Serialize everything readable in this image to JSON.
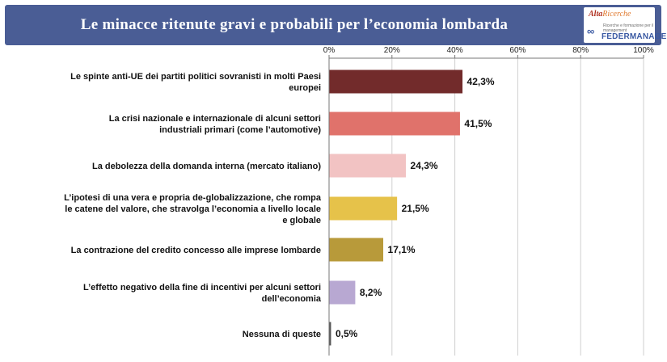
{
  "header": {
    "title": "Le minacce ritenute gravi e probabili per l’economia lombarda",
    "logo_top": [
      "Alta",
      "Ricerche"
    ],
    "logo_bottom": "FEDERMANAGER",
    "logo_small": "Ricerche e formazione per il management"
  },
  "colors": {
    "header_bg": "#4a5d95",
    "bars": [
      "#722b2b",
      "#e0726b",
      "#f2c3c3",
      "#e6c24a",
      "#b89a3a",
      "#b8a8d2",
      "#555555"
    ]
  },
  "chart_data": {
    "type": "bar",
    "orientation": "horizontal",
    "title": "Le minacce ritenute gravi e probabili per l’economia lombarda",
    "xlim": [
      0,
      100
    ],
    "x_ticks": [
      "0%",
      "20%",
      "40%",
      "60%",
      "80%",
      "100%"
    ],
    "x_axis_position": "top",
    "grid": true,
    "categories": [
      [
        "Le spinte anti-UE dei partiti politici sovranisti in molti Paesi",
        "europei"
      ],
      [
        "La crisi nazionale e internazionale di alcuni settori",
        "industriali primari (come l’automotive)"
      ],
      [
        "La debolezza della domanda interna (mercato italiano)"
      ],
      [
        "L’ipotesi di una vera e propria de-globalizzazione, che rompa",
        "le catene del valore, che stravolga l’economia a livello locale",
        "e globale"
      ],
      [
        "La contrazione del credito concesso alle imprese lombarde"
      ],
      [
        "L’effetto negativo della fine di incentivi per alcuni settori",
        "dell’economia"
      ],
      [
        "Nessuna di queste"
      ]
    ],
    "values": [
      42.3,
      41.5,
      24.3,
      21.5,
      17.1,
      8.2,
      0.5
    ],
    "value_labels": [
      "42,3%",
      "41,5%",
      "24,3%",
      "21,5%",
      "17,1%",
      "8,2%",
      "0,5%"
    ]
  }
}
